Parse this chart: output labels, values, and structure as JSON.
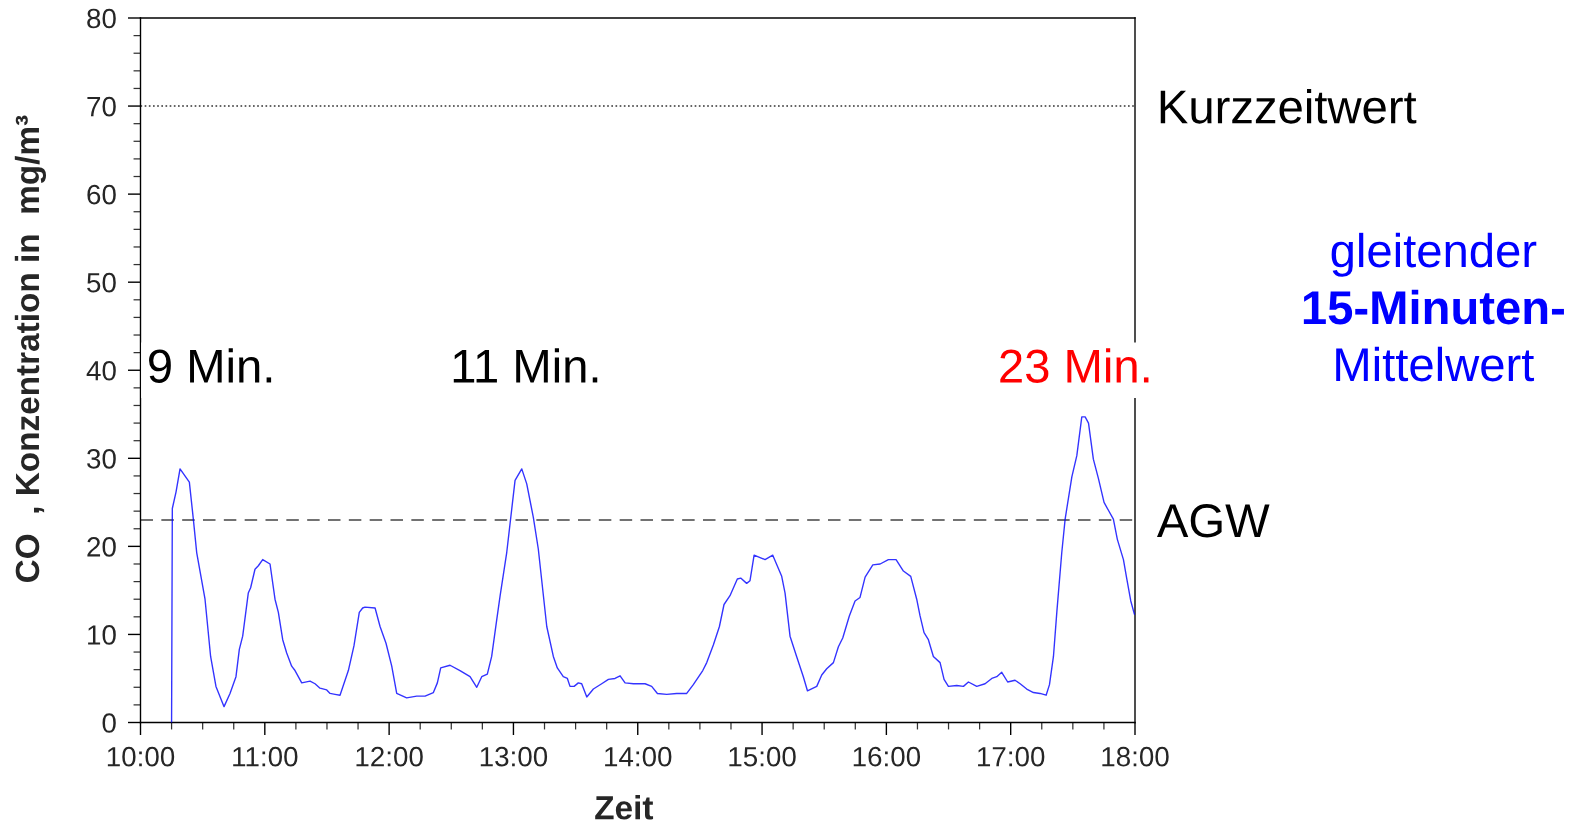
{
  "chart_data": {
    "type": "line",
    "xlabel": "Zeit",
    "ylabel": "CO  , Konzentration in  mg/m³",
    "xlim": [
      10,
      18
    ],
    "xticks": [
      {
        "value": 10,
        "label": "10:00"
      },
      {
        "value": 11,
        "label": "11:00"
      },
      {
        "value": 12,
        "label": "12:00"
      },
      {
        "value": 13,
        "label": "13:00"
      },
      {
        "value": 14,
        "label": "14:00"
      },
      {
        "value": 15,
        "label": "15:00"
      },
      {
        "value": 16,
        "label": "16:00"
      },
      {
        "value": 17,
        "label": "17:00"
      },
      {
        "value": 18,
        "label": "18:00"
      }
    ],
    "ylim": [
      0,
      80
    ],
    "yticks": [
      0,
      10,
      20,
      30,
      40,
      50,
      60,
      70,
      80
    ],
    "grid": false,
    "marker": "none",
    "line_style": "solid",
    "series": [
      {
        "name": "gleitender\n15-Minuten-\nMittelwert",
        "color": "#0000ff",
        "x": [
          10.25,
          10.256,
          10.286,
          10.318,
          10.393,
          10.425,
          10.452,
          10.519,
          10.564,
          10.607,
          10.672,
          10.72,
          10.768,
          10.795,
          10.822,
          10.867,
          10.886,
          10.921,
          10.948,
          10.983,
          11.042,
          11.082,
          11.109,
          11.144,
          11.176,
          11.216,
          11.243,
          11.297,
          11.364,
          11.404,
          11.444,
          11.498,
          11.525,
          11.565,
          11.605,
          11.672,
          11.717,
          11.76,
          11.787,
          11.806,
          11.887,
          11.927,
          11.975,
          12.021,
          12.061,
          12.141,
          12.222,
          12.289,
          12.356,
          12.388,
          12.415,
          12.49,
          12.57,
          12.651,
          12.705,
          12.745,
          12.79,
          12.825,
          12.866,
          12.893,
          12.946,
          13.013,
          13.067,
          13.107,
          13.16,
          13.2,
          13.268,
          13.321,
          13.353,
          13.401,
          13.434,
          13.455,
          13.488,
          13.522,
          13.549,
          13.59,
          13.643,
          13.71,
          13.764,
          13.817,
          13.858,
          13.898,
          13.965,
          14.059,
          14.112,
          14.158,
          14.233,
          14.313,
          14.394,
          14.447,
          14.523,
          14.555,
          14.608,
          14.657,
          14.694,
          14.742,
          14.801,
          14.828,
          14.876,
          14.903,
          14.936,
          15.024,
          15.086,
          15.158,
          15.185,
          15.225,
          15.278,
          15.332,
          15.365,
          15.44,
          15.48,
          15.52,
          15.574,
          15.614,
          15.649,
          15.702,
          15.748,
          15.788,
          15.829,
          15.891,
          15.95,
          16.016,
          16.078,
          16.137,
          16.196,
          16.244,
          16.271,
          16.303,
          16.338,
          16.378,
          16.432,
          16.464,
          16.499,
          16.566,
          16.62,
          16.66,
          16.727,
          16.794,
          16.848,
          16.888,
          16.928,
          16.976,
          17.035,
          17.076,
          17.129,
          17.183,
          17.236,
          17.285,
          17.312,
          17.344,
          17.371,
          17.411,
          17.438,
          17.492,
          17.532,
          17.572,
          17.599,
          17.626,
          17.665,
          17.706,
          17.751,
          17.786,
          17.826,
          17.858,
          17.907,
          17.934,
          17.966,
          17.995
        ],
        "values": [
          0,
          24.3,
          26.2,
          28.8,
          27.3,
          23.1,
          19.3,
          14.0,
          7.5,
          4.1,
          1.8,
          3.3,
          5.2,
          8.3,
          9.8,
          14.7,
          15.3,
          17.4,
          17.8,
          18.5,
          18.0,
          14.0,
          12.5,
          9.4,
          7.9,
          6.4,
          5.9,
          4.5,
          4.7,
          4.4,
          3.9,
          3.7,
          3.3,
          3.2,
          3.1,
          5.9,
          8.7,
          12.5,
          13.0,
          13.1,
          13.0,
          10.9,
          9.0,
          6.4,
          3.3,
          2.8,
          3.0,
          3.0,
          3.4,
          4.5,
          6.2,
          6.5,
          5.9,
          5.2,
          4.0,
          5.2,
          5.5,
          7.5,
          11.7,
          14.4,
          19.3,
          27.5,
          28.8,
          27.1,
          23.3,
          19.7,
          10.9,
          7.5,
          6.2,
          5.2,
          5.0,
          4.1,
          4.1,
          4.5,
          4.4,
          2.9,
          3.8,
          4.4,
          4.9,
          5.0,
          5.3,
          4.5,
          4.4,
          4.4,
          4.1,
          3.3,
          3.2,
          3.3,
          3.3,
          4.3,
          5.9,
          6.8,
          8.8,
          10.9,
          13.4,
          14.4,
          16.3,
          16.4,
          15.8,
          16.1,
          19.0,
          18.5,
          19.0,
          16.6,
          14.7,
          9.8,
          7.5,
          5.2,
          3.6,
          4.1,
          5.4,
          6.1,
          6.8,
          8.6,
          9.6,
          12.1,
          13.8,
          14.2,
          16.5,
          17.9,
          18.0,
          18.5,
          18.5,
          17.2,
          16.6,
          14.0,
          12.1,
          10.2,
          9.4,
          7.5,
          6.8,
          4.9,
          4.1,
          4.2,
          4.1,
          4.6,
          4.1,
          4.4,
          5.0,
          5.2,
          5.7,
          4.6,
          4.8,
          4.4,
          3.8,
          3.4,
          3.3,
          3.1,
          4.3,
          7.5,
          12.5,
          19.3,
          23.1,
          27.9,
          30.3,
          34.7,
          34.7,
          34.0,
          29.9,
          27.7,
          25.0,
          24.1,
          23.1,
          20.8,
          18.5,
          16.3,
          13.8,
          12.3
        ]
      }
    ],
    "ref_lines": [
      {
        "axis": "y",
        "value": 70,
        "label": "Kurzzeitwert",
        "line_style": "dotted",
        "color": "#333333"
      },
      {
        "axis": "y",
        "value": 23,
        "label": "AGW",
        "line_style": "dashed",
        "color": "#444444"
      }
    ],
    "annotations": [
      "9 Min.",
      "11 Min.",
      "23 Min."
    ]
  }
}
